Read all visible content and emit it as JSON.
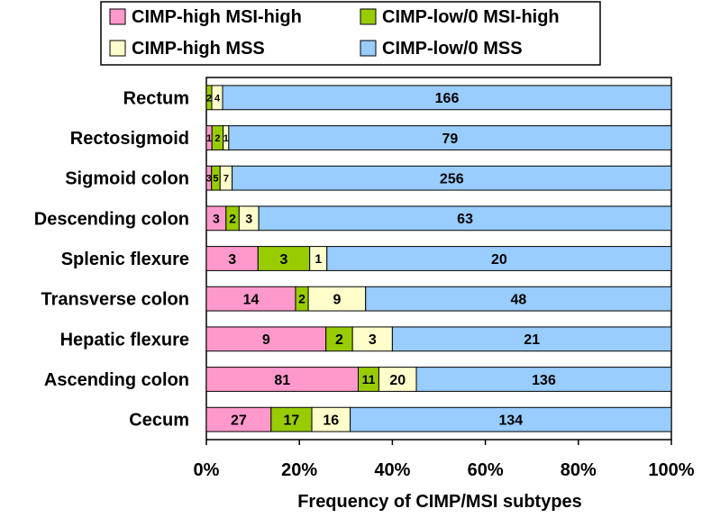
{
  "chart_data": {
    "type": "bar",
    "orientation": "horizontal",
    "stacked": "percent",
    "xlabel": "Frequency of CIMP/MSI subtypes",
    "xlim": [
      0,
      100
    ],
    "xticks": [
      "0%",
      "20%",
      "40%",
      "60%",
      "80%",
      "100%"
    ],
    "legend_position": "top",
    "categories": [
      "Rectum",
      "Rectosigmoid",
      "Sigmoid colon",
      "Descending colon",
      "Splenic flexure",
      "Transverse colon",
      "Hepatic flexure",
      "Ascending colon",
      "Cecum"
    ],
    "series": [
      {
        "name": "CIMP-high MSI-high",
        "color": "#ff99cc",
        "values": [
          0,
          1,
          3,
          3,
          3,
          14,
          9,
          81,
          27
        ]
      },
      {
        "name": "CIMP-low/0 MSI-high",
        "color": "#99cc00",
        "values": [
          2,
          2,
          5,
          2,
          3,
          2,
          2,
          11,
          17
        ]
      },
      {
        "name": "CIMP-high MSS",
        "color": "#ffffcc",
        "values": [
          4,
          1,
          7,
          3,
          1,
          9,
          3,
          20,
          16
        ]
      },
      {
        "name": "CIMP-low/0 MSS",
        "color": "#99ccff",
        "values": [
          166,
          79,
          256,
          63,
          20,
          48,
          21,
          136,
          134
        ]
      }
    ],
    "grid": false
  }
}
